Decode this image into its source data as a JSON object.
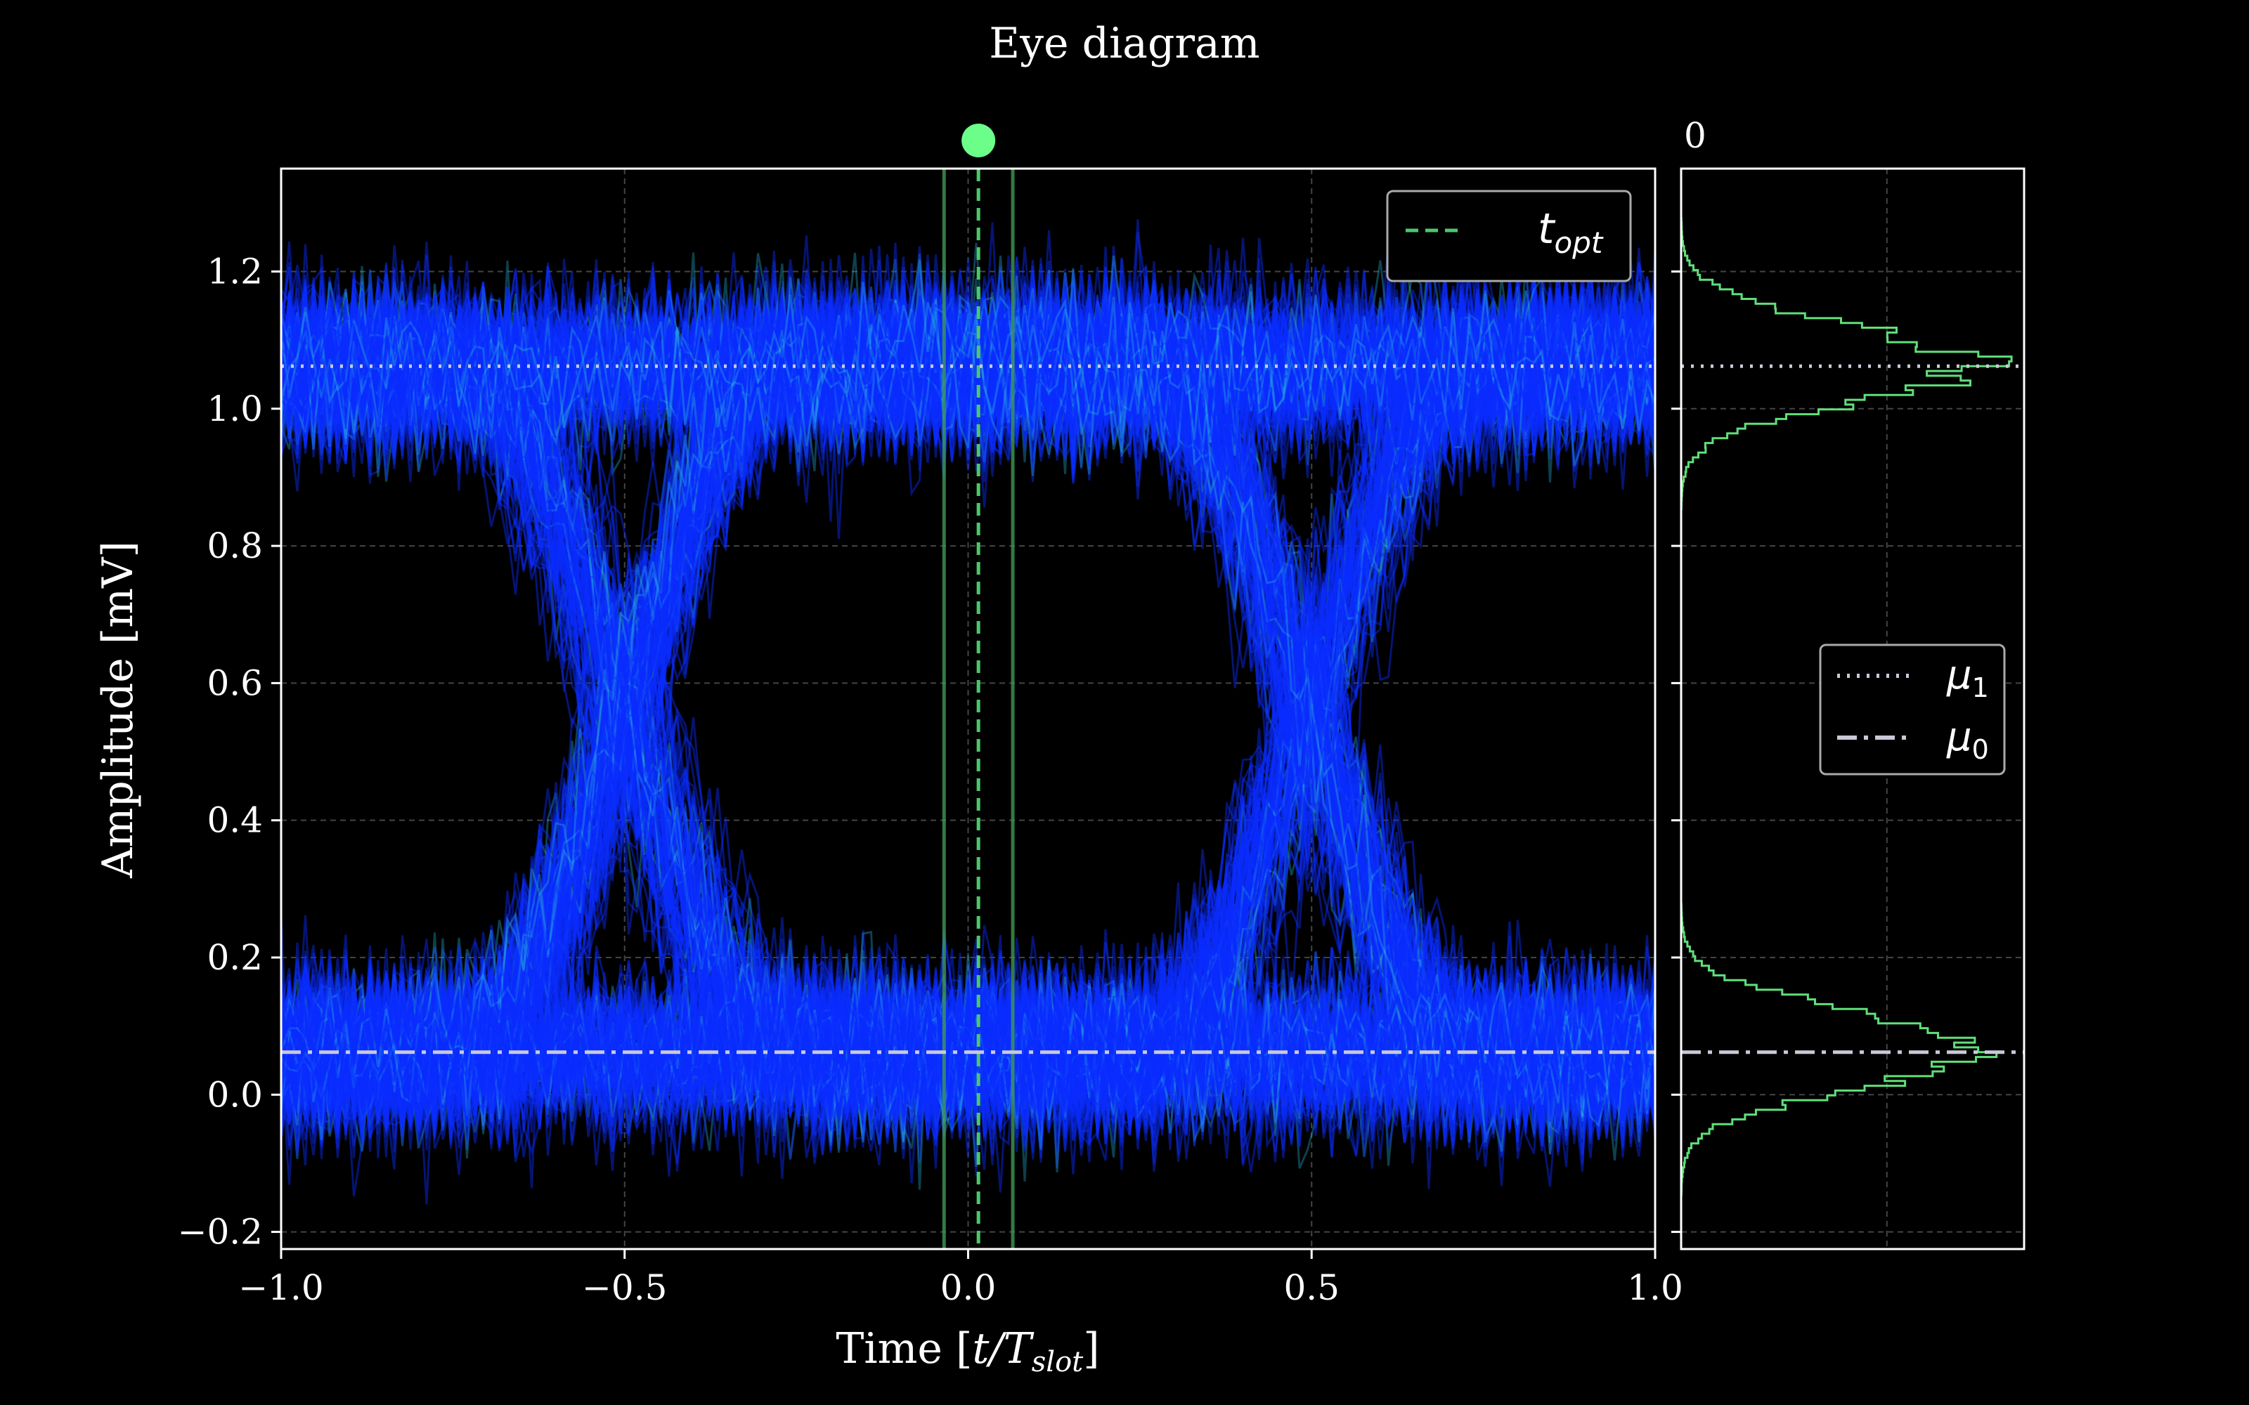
{
  "chart_data": {
    "type": "scatter",
    "title": "Eye diagram",
    "xlabel": {
      "prefix": "Time [",
      "var": "t/T",
      "sub": "slot",
      "suffix": "]"
    },
    "ylabel": "Amplitude [mV]",
    "xlim": [
      -1.0,
      1.0
    ],
    "ylim": [
      -0.225,
      1.35
    ],
    "xticks": [
      {
        "value": -1.0,
        "label": "−1.0"
      },
      {
        "value": -0.5,
        "label": "−0.5"
      },
      {
        "value": 0.0,
        "label": "0.0"
      },
      {
        "value": 0.5,
        "label": "0.5"
      },
      {
        "value": 1.0,
        "label": "1.0"
      }
    ],
    "yticks": [
      {
        "value": -0.2,
        "label": "−0.2"
      },
      {
        "value": 0.0,
        "label": "0.0"
      },
      {
        "value": 0.2,
        "label": "0.2"
      },
      {
        "value": 0.4,
        "label": "0.4"
      },
      {
        "value": 0.6,
        "label": "0.6"
      },
      {
        "value": 0.8,
        "label": "0.8"
      },
      {
        "value": 1.0,
        "label": "1.0"
      },
      {
        "value": 1.2,
        "label": "1.2"
      }
    ],
    "grid": true,
    "mu1": 1.062,
    "mu0": 0.062,
    "t_opt": 0.015,
    "window": [
      -0.035,
      0.065
    ],
    "noise_sigma": 0.055,
    "eye_crossing_level": 0.5,
    "eye_crossings": [
      -0.5,
      0.5
    ],
    "legend_main": {
      "placement": "top-right",
      "label": "t",
      "label_sub": "opt"
    },
    "legend_hist": {
      "placement": "center-right",
      "entries": [
        {
          "label": "μ",
          "sub": "1",
          "style": "dotted"
        },
        {
          "label": "μ",
          "sub": "0",
          "style": "dashdot"
        }
      ]
    },
    "hist_xtick_label": "0",
    "colors": {
      "background": "#000000",
      "scatter": "#0a2cff",
      "scatter_dense": "#29b6e0",
      "hist": "#5fe07a",
      "t_opt": "#4cc86a",
      "window": "#3f9a52",
      "mean_lines": "#c9c9d9",
      "marker": "#6bff8a",
      "axis": "#ffffff"
    }
  }
}
